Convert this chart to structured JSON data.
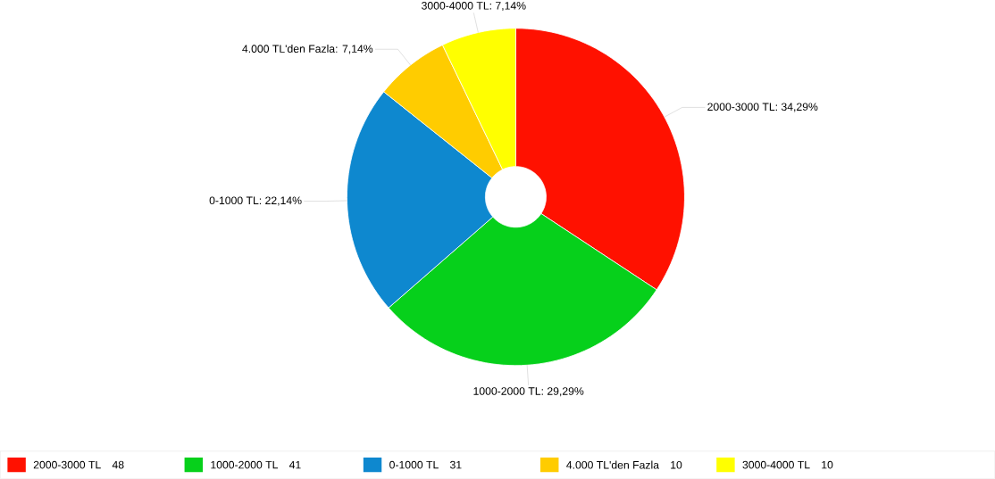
{
  "chart_data": {
    "type": "donut",
    "categories": [
      "2000-3000 TL",
      "1000-2000 TL",
      "0-1000 TL",
      "4.000 TL'den Fazla",
      "3000-4000 TL"
    ],
    "values": [
      48,
      41,
      31,
      10,
      10
    ],
    "value_labels": [
      "48",
      "41",
      "31",
      "10",
      "10"
    ],
    "annotations": [
      "2000-3000 TL: 34,29%",
      "1000-2000 TL: 29,29%",
      "0-1000 TL: 22,14%",
      "4.000 TL'den Fazla: 7,14%",
      "3000-4000 TL: 7,14%"
    ],
    "colors": [
      "#ff1100",
      "#06d01b",
      "#0e88cf",
      "#ffcc00",
      "#ffff00"
    ],
    "legend": "bottom"
  }
}
